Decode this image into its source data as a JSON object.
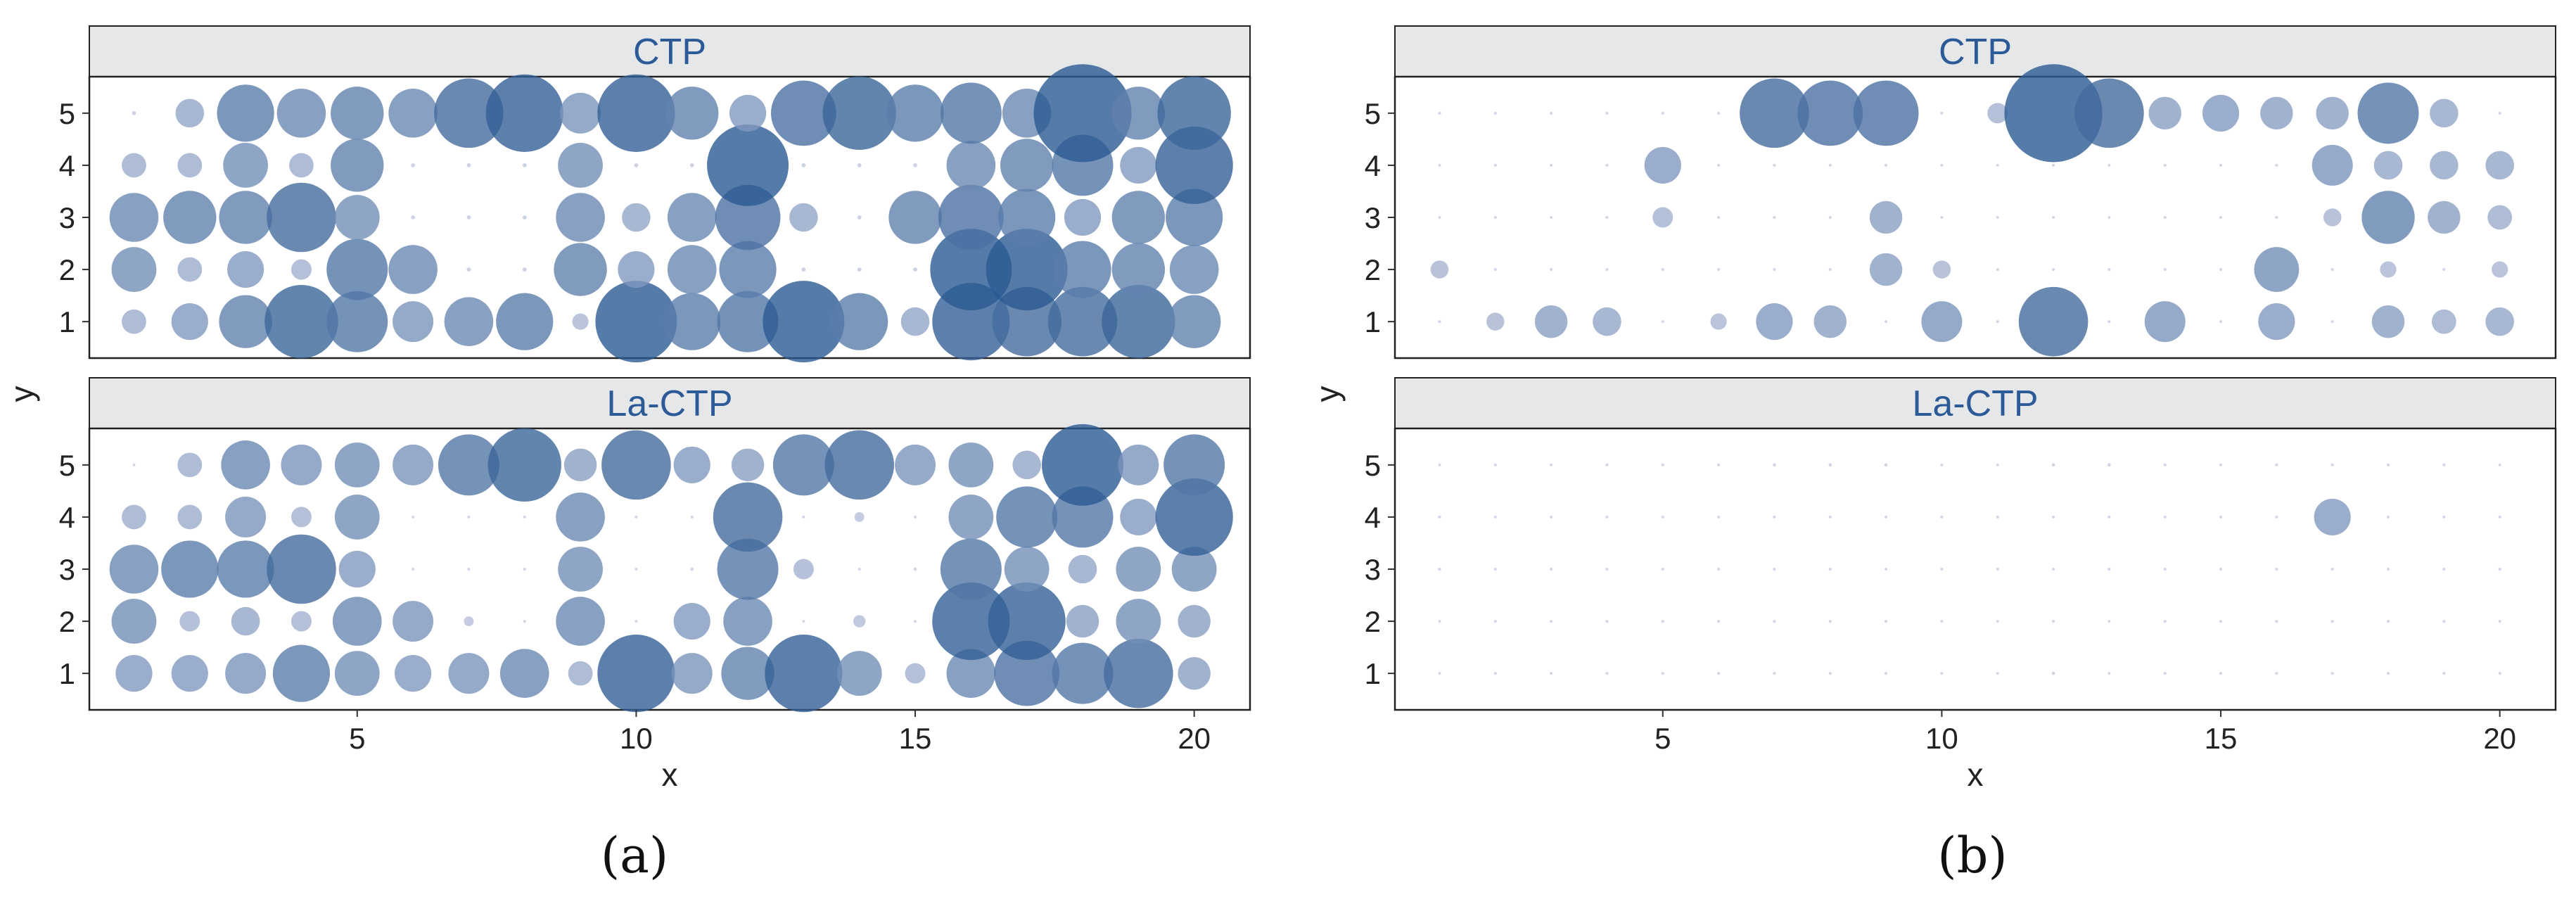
{
  "colors": {
    "strip_fill": "#e6e7e9",
    "strip_text": "#2b5a96",
    "panel_border": "#222222",
    "bubble_light": "#c9cde3",
    "bubble_dark": "#2b5a92"
  },
  "chart_data": [
    {
      "type": "scatter",
      "caption": "(a)",
      "xlabel": "x",
      "ylabel": "y",
      "xlim": [
        0.2,
        21.0
      ],
      "ylim": [
        0.3,
        5.7
      ],
      "xticks": [
        5,
        10,
        15,
        20
      ],
      "yticks": [
        1,
        2,
        3,
        4,
        5
      ],
      "facets": [
        {
          "name": "CTP",
          "grid": [
            [
              0.3,
              0.45,
              0.65,
              0.9,
              0.75,
              0.5,
              0.6,
              0.7,
              0.2,
              1.0,
              0.7,
              0.75,
              1.0,
              0.7,
              0.35,
              0.95,
              0.85,
              0.85,
              0.9,
              0.65
            ],
            [
              0.55,
              0.3,
              0.45,
              0.25,
              0.75,
              0.6,
              0.05,
              0.05,
              0.65,
              0.45,
              0.6,
              0.7,
              0.05,
              0.05,
              0.05,
              1.0,
              1.0,
              0.7,
              0.65,
              0.6
            ],
            [
              0.6,
              0.65,
              0.65,
              0.85,
              0.55,
              0.05,
              0.05,
              0.05,
              0.6,
              0.35,
              0.6,
              0.8,
              0.35,
              0.05,
              0.65,
              0.8,
              0.7,
              0.45,
              0.65,
              0.7
            ],
            [
              0.3,
              0.3,
              0.55,
              0.3,
              0.65,
              0.05,
              0.05,
              0.05,
              0.55,
              0.05,
              0.05,
              1.0,
              0.05,
              0.05,
              0.05,
              0.6,
              0.65,
              0.75,
              0.45,
              0.95
            ],
            [
              0.05,
              0.35,
              0.7,
              0.6,
              0.65,
              0.6,
              0.85,
              0.95,
              0.5,
              0.95,
              0.65,
              0.45,
              0.8,
              0.9,
              0.7,
              0.75,
              0.6,
              1.2,
              0.65,
              0.9
            ]
          ]
        },
        {
          "name": "La-CTP",
          "grid": [
            [
              0.45,
              0.45,
              0.5,
              0.7,
              0.55,
              0.45,
              0.5,
              0.6,
              0.3,
              0.95,
              0.5,
              0.65,
              0.95,
              0.55,
              0.25,
              0.6,
              0.8,
              0.75,
              0.85,
              0.4
            ],
            [
              0.55,
              0.25,
              0.35,
              0.25,
              0.6,
              0.5,
              0.12,
              0.02,
              0.6,
              0.02,
              0.45,
              0.6,
              0.02,
              0.15,
              0.02,
              0.95,
              0.95,
              0.4,
              0.55,
              0.4
            ],
            [
              0.6,
              0.7,
              0.7,
              0.85,
              0.45,
              0.02,
              0.02,
              0.02,
              0.55,
              0.02,
              0.04,
              0.75,
              0.25,
              0.02,
              0.04,
              0.75,
              0.55,
              0.35,
              0.55,
              0.55
            ],
            [
              0.3,
              0.3,
              0.5,
              0.25,
              0.55,
              0.02,
              0.02,
              0.02,
              0.6,
              0.02,
              0.02,
              0.85,
              0.02,
              0.12,
              0.02,
              0.55,
              0.75,
              0.75,
              0.45,
              0.95
            ],
            [
              0.02,
              0.3,
              0.6,
              0.5,
              0.55,
              0.5,
              0.75,
              0.9,
              0.4,
              0.85,
              0.45,
              0.4,
              0.75,
              0.85,
              0.5,
              0.55,
              0.35,
              1.0,
              0.5,
              0.75
            ]
          ]
        }
      ]
    },
    {
      "type": "scatter",
      "caption": "(b)",
      "xlabel": "x",
      "ylabel": "y",
      "xlim": [
        0.2,
        21.0
      ],
      "ylim": [
        0.3,
        5.7
      ],
      "xticks": [
        5,
        10,
        15,
        20
      ],
      "yticks": [
        1,
        2,
        3,
        4,
        5
      ],
      "facets": [
        {
          "name": "CTP",
          "grid": [
            [
              0.02,
              0.22,
              0.4,
              0.35,
              0.02,
              0.2,
              0.45,
              0.4,
              0.02,
              0.5,
              0.02,
              0.85,
              0.02,
              0.5,
              0.02,
              0.45,
              0.02,
              0.4,
              0.3,
              0.35
            ],
            [
              0.22,
              0.02,
              0.02,
              0.02,
              0.02,
              0.02,
              0.02,
              0.02,
              0.4,
              0.22,
              0.02,
              0.02,
              0.02,
              0.02,
              0.02,
              0.55,
              0.02,
              0.2,
              0.02,
              0.2
            ],
            [
              0.02,
              0.02,
              0.02,
              0.02,
              0.25,
              0.02,
              0.02,
              0.02,
              0.4,
              0.02,
              0.02,
              0.02,
              0.02,
              0.02,
              0.02,
              0.02,
              0.22,
              0.65,
              0.4,
              0.3
            ],
            [
              0.02,
              0.02,
              0.02,
              0.02,
              0.45,
              0.02,
              0.02,
              0.02,
              0.02,
              0.02,
              0.02,
              0.02,
              0.02,
              0.02,
              0.02,
              0.02,
              0.5,
              0.35,
              0.35,
              0.35
            ],
            [
              0.02,
              0.02,
              0.02,
              0.02,
              0.02,
              0.02,
              0.85,
              0.8,
              0.8,
              0.02,
              0.25,
              1.2,
              0.85,
              0.4,
              0.45,
              0.4,
              0.4,
              0.75,
              0.35,
              0.02
            ]
          ]
        },
        {
          "name": "La-CTP",
          "grid": [
            [
              0.02,
              0.02,
              0.02,
              0.02,
              0.02,
              0.02,
              0.02,
              0.02,
              0.02,
              0.02,
              0.02,
              0.04,
              0.02,
              0.02,
              0.02,
              0.02,
              0.02,
              0.02,
              0.02,
              0.02
            ],
            [
              0.02,
              0.02,
              0.02,
              0.02,
              0.02,
              0.02,
              0.02,
              0.02,
              0.02,
              0.02,
              0.02,
              0.02,
              0.02,
              0.02,
              0.02,
              0.03,
              0.02,
              0.02,
              0.02,
              0.02
            ],
            [
              0.02,
              0.02,
              0.02,
              0.02,
              0.02,
              0.02,
              0.02,
              0.02,
              0.02,
              0.02,
              0.02,
              0.02,
              0.02,
              0.02,
              0.02,
              0.02,
              0.02,
              0.02,
              0.02,
              0.02
            ],
            [
              0.02,
              0.02,
              0.02,
              0.02,
              0.02,
              0.02,
              0.02,
              0.02,
              0.02,
              0.02,
              0.02,
              0.02,
              0.02,
              0.02,
              0.02,
              0.02,
              0.45,
              0.02,
              0.02,
              0.02
            ],
            [
              0.02,
              0.02,
              0.02,
              0.02,
              0.02,
              0.02,
              0.04,
              0.04,
              0.04,
              0.02,
              0.02,
              0.04,
              0.04,
              0.02,
              0.02,
              0.02,
              0.02,
              0.02,
              0.02,
              0.02
            ]
          ]
        }
      ]
    }
  ]
}
